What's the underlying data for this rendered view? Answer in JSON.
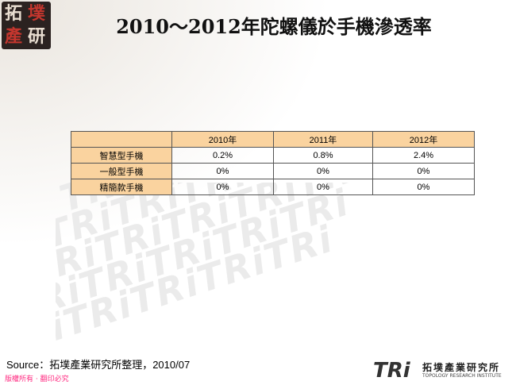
{
  "title": "2010～2012年陀螺儀於手機滲透率",
  "logo": {
    "chars": [
      "拓",
      "墣",
      "產",
      "研"
    ]
  },
  "chart_data": {
    "type": "table",
    "columns": [
      "",
      "2010年",
      "2011年",
      "2012年"
    ],
    "rows": [
      {
        "label": "智慧型手機",
        "values": [
          "0.2%",
          "0.8%",
          "2.4%"
        ]
      },
      {
        "label": "一般型手機",
        "values": [
          "0%",
          "0%",
          "0%"
        ]
      },
      {
        "label": "精簡款手機",
        "values": [
          "0%",
          "0%",
          "0%"
        ]
      }
    ]
  },
  "source": "Source：拓墣產業研究所整理，2010/07",
  "copyright": "版權所有 · 翻印必究",
  "footer_logo": {
    "mark": "TRi",
    "name_cn": "拓墣產業研究所",
    "name_en": "TOPOLOGY RESEARCH INSTITUTE"
  },
  "colors": {
    "header_fill": "#fad39f",
    "copyright": "#ff2a80",
    "accent": "#c8342c"
  }
}
